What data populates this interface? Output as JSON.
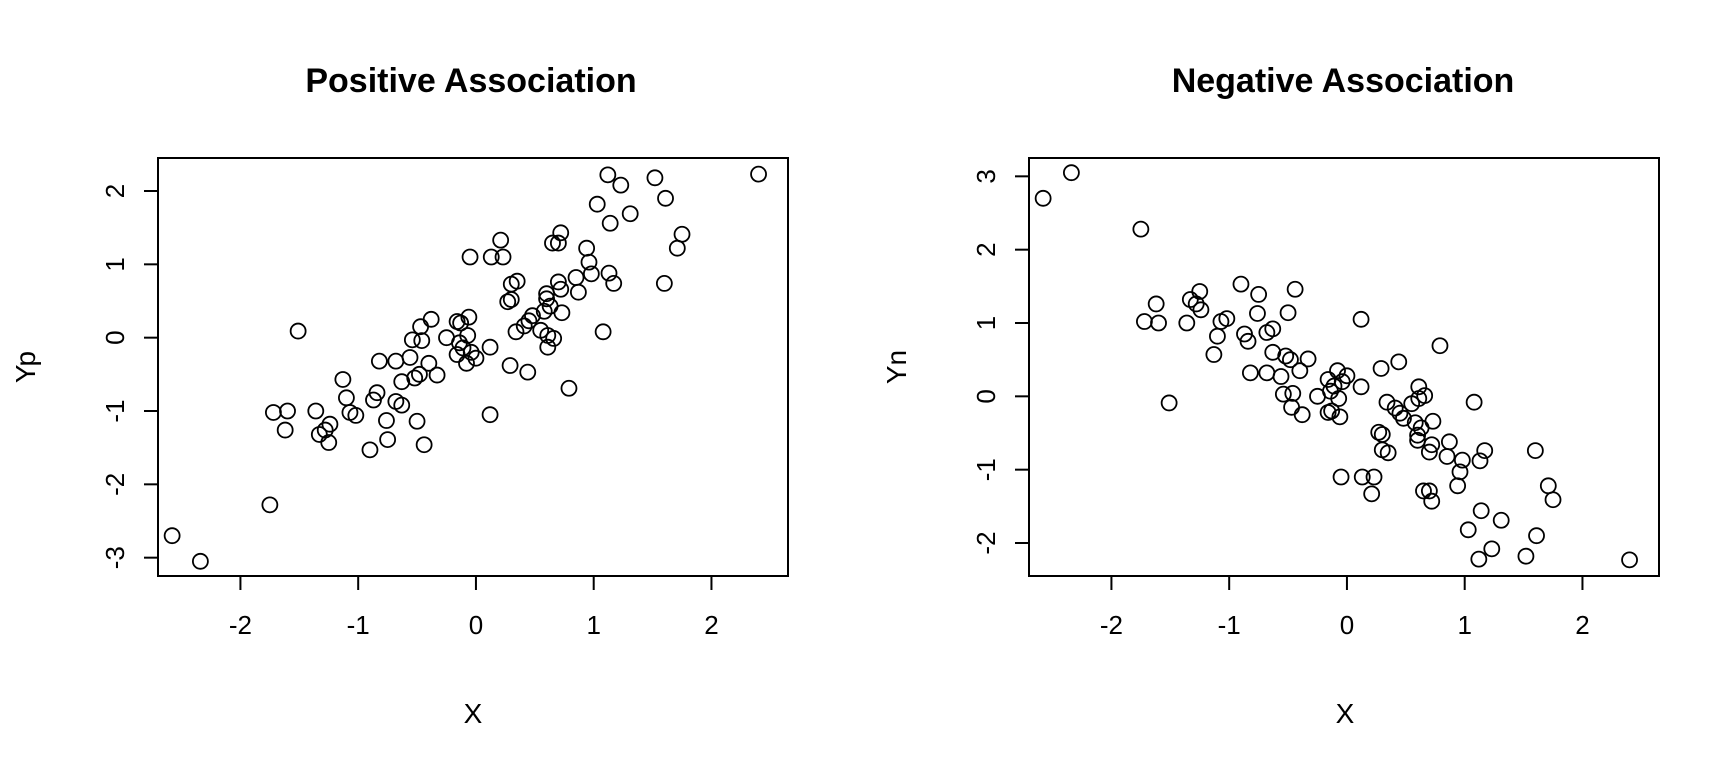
{
  "chart_data": [
    {
      "type": "scatter",
      "title": "Positive Association",
      "xlabel": "X",
      "ylabel": "Yp",
      "xlim": [
        -2.7,
        2.65
      ],
      "ylim": [
        -3.25,
        2.45
      ],
      "xticks": [
        -2,
        -1,
        0,
        1,
        2
      ],
      "yticks": [
        -3,
        -2,
        -1,
        0,
        1,
        2
      ],
      "xtick_labels": [
        "-2",
        "-1",
        "0",
        "1",
        "2"
      ],
      "ytick_labels": [
        "-3",
        "-2",
        "-1",
        "0",
        "1",
        "2"
      ],
      "grid": false,
      "marker": "open-circle",
      "color": "#000000",
      "points": [
        {
          "x": -2.58,
          "y": -2.7
        },
        {
          "x": -2.34,
          "y": -3.05
        },
        {
          "x": -1.75,
          "y": -2.28
        },
        {
          "x": -1.72,
          "y": -1.02
        },
        {
          "x": -1.62,
          "y": -1.26
        },
        {
          "x": -1.6,
          "y": -1.0
        },
        {
          "x": -1.51,
          "y": 0.09
        },
        {
          "x": -1.36,
          "y": -1.0
        },
        {
          "x": -1.33,
          "y": -1.32
        },
        {
          "x": -1.28,
          "y": -1.26
        },
        {
          "x": -1.25,
          "y": -1.43
        },
        {
          "x": -1.24,
          "y": -1.18
        },
        {
          "x": -1.13,
          "y": -0.57
        },
        {
          "x": -1.1,
          "y": -0.82
        },
        {
          "x": -1.07,
          "y": -1.02
        },
        {
          "x": -1.02,
          "y": -1.06
        },
        {
          "x": -0.9,
          "y": -1.53
        },
        {
          "x": -0.87,
          "y": -0.85
        },
        {
          "x": -0.84,
          "y": -0.75
        },
        {
          "x": -0.82,
          "y": -0.32
        },
        {
          "x": -0.76,
          "y": -1.13
        },
        {
          "x": -0.75,
          "y": -1.39
        },
        {
          "x": -0.68,
          "y": -0.87
        },
        {
          "x": -0.68,
          "y": -0.32
        },
        {
          "x": -0.63,
          "y": -0.92
        },
        {
          "x": -0.63,
          "y": -0.6
        },
        {
          "x": -0.56,
          "y": -0.27
        },
        {
          "x": -0.54,
          "y": -0.03
        },
        {
          "x": -0.52,
          "y": -0.55
        },
        {
          "x": -0.5,
          "y": -1.14
        },
        {
          "x": -0.48,
          "y": -0.5
        },
        {
          "x": -0.47,
          "y": 0.15
        },
        {
          "x": -0.46,
          "y": -0.04
        },
        {
          "x": -0.44,
          "y": -1.46
        },
        {
          "x": -0.4,
          "y": -0.35
        },
        {
          "x": -0.38,
          "y": 0.25
        },
        {
          "x": -0.33,
          "y": -0.51
        },
        {
          "x": -0.25,
          "y": 0.0
        },
        {
          "x": -0.16,
          "y": 0.22
        },
        {
          "x": -0.16,
          "y": -0.23
        },
        {
          "x": -0.14,
          "y": -0.07
        },
        {
          "x": -0.13,
          "y": 0.2
        },
        {
          "x": -0.11,
          "y": -0.14
        },
        {
          "x": -0.08,
          "y": -0.35
        },
        {
          "x": -0.07,
          "y": 0.03
        },
        {
          "x": -0.06,
          "y": 0.28
        },
        {
          "x": -0.05,
          "y": 1.1
        },
        {
          "x": -0.04,
          "y": -0.2
        },
        {
          "x": 0.0,
          "y": -0.28
        },
        {
          "x": 0.12,
          "y": -0.13
        },
        {
          "x": 0.12,
          "y": -1.05
        },
        {
          "x": 0.13,
          "y": 1.1
        },
        {
          "x": 0.21,
          "y": 1.33
        },
        {
          "x": 0.23,
          "y": 1.1
        },
        {
          "x": 0.27,
          "y": 0.49
        },
        {
          "x": 0.29,
          "y": -0.38
        },
        {
          "x": 0.3,
          "y": 0.52
        },
        {
          "x": 0.3,
          "y": 0.73
        },
        {
          "x": 0.34,
          "y": 0.08
        },
        {
          "x": 0.35,
          "y": 0.77
        },
        {
          "x": 0.41,
          "y": 0.16
        },
        {
          "x": 0.44,
          "y": -0.47
        },
        {
          "x": 0.45,
          "y": 0.23
        },
        {
          "x": 0.48,
          "y": 0.3
        },
        {
          "x": 0.55,
          "y": 0.1
        },
        {
          "x": 0.58,
          "y": 0.36
        },
        {
          "x": 0.6,
          "y": 0.6
        },
        {
          "x": 0.6,
          "y": 0.53
        },
        {
          "x": 0.61,
          "y": 0.03
        },
        {
          "x": 0.61,
          "y": -0.13
        },
        {
          "x": 0.63,
          "y": 0.43
        },
        {
          "x": 0.65,
          "y": 1.29
        },
        {
          "x": 0.66,
          "y": -0.01
        },
        {
          "x": 0.7,
          "y": 1.29
        },
        {
          "x": 0.7,
          "y": 0.76
        },
        {
          "x": 0.72,
          "y": 1.43
        },
        {
          "x": 0.72,
          "y": 0.66
        },
        {
          "x": 0.73,
          "y": 0.34
        },
        {
          "x": 0.79,
          "y": -0.69
        },
        {
          "x": 0.85,
          "y": 0.82
        },
        {
          "x": 0.87,
          "y": 0.62
        },
        {
          "x": 0.94,
          "y": 1.22
        },
        {
          "x": 0.96,
          "y": 1.03
        },
        {
          "x": 0.98,
          "y": 0.87
        },
        {
          "x": 1.03,
          "y": 1.82
        },
        {
          "x": 1.08,
          "y": 0.08
        },
        {
          "x": 1.12,
          "y": 2.22
        },
        {
          "x": 1.13,
          "y": 0.88
        },
        {
          "x": 1.14,
          "y": 1.56
        },
        {
          "x": 1.17,
          "y": 0.74
        },
        {
          "x": 1.23,
          "y": 2.08
        },
        {
          "x": 1.31,
          "y": 1.69
        },
        {
          "x": 1.52,
          "y": 2.18
        },
        {
          "x": 1.6,
          "y": 0.74
        },
        {
          "x": 1.61,
          "y": 1.9
        },
        {
          "x": 1.71,
          "y": 1.22
        },
        {
          "x": 1.75,
          "y": 1.41
        },
        {
          "x": 2.4,
          "y": 2.23
        }
      ]
    },
    {
      "type": "scatter",
      "title": "Negative Association",
      "xlabel": "X",
      "ylabel": "Yn",
      "xlim": [
        -2.7,
        2.65
      ],
      "ylim": [
        -2.45,
        3.25
      ],
      "xticks": [
        -2,
        -1,
        0,
        1,
        2
      ],
      "yticks": [
        -2,
        -1,
        0,
        1,
        2,
        3
      ],
      "xtick_labels": [
        "-2",
        "-1",
        "0",
        "1",
        "2"
      ],
      "ytick_labels": [
        "-2",
        "-1",
        "0",
        "1",
        "2",
        "3"
      ],
      "grid": false,
      "marker": "open-circle",
      "color": "#000000",
      "points": [
        {
          "x": -2.58,
          "y": 2.7
        },
        {
          "x": -2.34,
          "y": 3.05
        },
        {
          "x": -1.75,
          "y": 2.28
        },
        {
          "x": -1.72,
          "y": 1.02
        },
        {
          "x": -1.62,
          "y": 1.26
        },
        {
          "x": -1.6,
          "y": 1.0
        },
        {
          "x": -1.51,
          "y": -0.09
        },
        {
          "x": -1.36,
          "y": 1.0
        },
        {
          "x": -1.33,
          "y": 1.32
        },
        {
          "x": -1.28,
          "y": 1.26
        },
        {
          "x": -1.25,
          "y": 1.43
        },
        {
          "x": -1.24,
          "y": 1.18
        },
        {
          "x": -1.13,
          "y": 0.57
        },
        {
          "x": -1.1,
          "y": 0.82
        },
        {
          "x": -1.07,
          "y": 1.02
        },
        {
          "x": -1.02,
          "y": 1.06
        },
        {
          "x": -0.9,
          "y": 1.53
        },
        {
          "x": -0.87,
          "y": 0.85
        },
        {
          "x": -0.84,
          "y": 0.75
        },
        {
          "x": -0.82,
          "y": 0.32
        },
        {
          "x": -0.76,
          "y": 1.13
        },
        {
          "x": -0.75,
          "y": 1.39
        },
        {
          "x": -0.68,
          "y": 0.87
        },
        {
          "x": -0.68,
          "y": 0.32
        },
        {
          "x": -0.63,
          "y": 0.92
        },
        {
          "x": -0.63,
          "y": 0.6
        },
        {
          "x": -0.56,
          "y": 0.27
        },
        {
          "x": -0.54,
          "y": 0.03
        },
        {
          "x": -0.52,
          "y": 0.55
        },
        {
          "x": -0.5,
          "y": 1.14
        },
        {
          "x": -0.48,
          "y": 0.5
        },
        {
          "x": -0.47,
          "y": -0.15
        },
        {
          "x": -0.46,
          "y": 0.04
        },
        {
          "x": -0.44,
          "y": 1.46
        },
        {
          "x": -0.4,
          "y": 0.35
        },
        {
          "x": -0.38,
          "y": -0.25
        },
        {
          "x": -0.33,
          "y": 0.51
        },
        {
          "x": -0.25,
          "y": 0.0
        },
        {
          "x": -0.16,
          "y": -0.22
        },
        {
          "x": -0.16,
          "y": 0.23
        },
        {
          "x": -0.14,
          "y": 0.07
        },
        {
          "x": -0.13,
          "y": -0.2
        },
        {
          "x": -0.11,
          "y": 0.14
        },
        {
          "x": -0.08,
          "y": 0.35
        },
        {
          "x": -0.07,
          "y": -0.03
        },
        {
          "x": -0.06,
          "y": -0.28
        },
        {
          "x": -0.05,
          "y": -1.1
        },
        {
          "x": -0.04,
          "y": 0.2
        },
        {
          "x": 0.0,
          "y": 0.28
        },
        {
          "x": 0.12,
          "y": 0.13
        },
        {
          "x": 0.12,
          "y": 1.05
        },
        {
          "x": 0.13,
          "y": -1.1
        },
        {
          "x": 0.21,
          "y": -1.33
        },
        {
          "x": 0.23,
          "y": -1.1
        },
        {
          "x": 0.27,
          "y": -0.49
        },
        {
          "x": 0.29,
          "y": 0.38
        },
        {
          "x": 0.3,
          "y": -0.52
        },
        {
          "x": 0.3,
          "y": -0.73
        },
        {
          "x": 0.34,
          "y": -0.08
        },
        {
          "x": 0.35,
          "y": -0.77
        },
        {
          "x": 0.41,
          "y": -0.16
        },
        {
          "x": 0.44,
          "y": 0.47
        },
        {
          "x": 0.45,
          "y": -0.23
        },
        {
          "x": 0.48,
          "y": -0.3
        },
        {
          "x": 0.55,
          "y": -0.1
        },
        {
          "x": 0.58,
          "y": -0.36
        },
        {
          "x": 0.6,
          "y": -0.6
        },
        {
          "x": 0.6,
          "y": -0.53
        },
        {
          "x": 0.61,
          "y": -0.03
        },
        {
          "x": 0.61,
          "y": 0.13
        },
        {
          "x": 0.63,
          "y": -0.43
        },
        {
          "x": 0.65,
          "y": -1.29
        },
        {
          "x": 0.66,
          "y": 0.01
        },
        {
          "x": 0.7,
          "y": -1.29
        },
        {
          "x": 0.7,
          "y": -0.76
        },
        {
          "x": 0.72,
          "y": -1.43
        },
        {
          "x": 0.72,
          "y": -0.66
        },
        {
          "x": 0.73,
          "y": -0.34
        },
        {
          "x": 0.79,
          "y": 0.69
        },
        {
          "x": 0.85,
          "y": -0.82
        },
        {
          "x": 0.87,
          "y": -0.62
        },
        {
          "x": 0.94,
          "y": -1.22
        },
        {
          "x": 0.96,
          "y": -1.03
        },
        {
          "x": 0.98,
          "y": -0.87
        },
        {
          "x": 1.03,
          "y": -1.82
        },
        {
          "x": 1.08,
          "y": -0.08
        },
        {
          "x": 1.12,
          "y": -2.22
        },
        {
          "x": 1.13,
          "y": -0.88
        },
        {
          "x": 1.14,
          "y": -1.56
        },
        {
          "x": 1.17,
          "y": -0.74
        },
        {
          "x": 1.23,
          "y": -2.08
        },
        {
          "x": 1.31,
          "y": -1.69
        },
        {
          "x": 1.52,
          "y": -2.18
        },
        {
          "x": 1.6,
          "y": -0.74
        },
        {
          "x": 1.61,
          "y": -1.9
        },
        {
          "x": 1.71,
          "y": -1.22
        },
        {
          "x": 1.75,
          "y": -1.41
        },
        {
          "x": 2.4,
          "y": -2.23
        }
      ]
    }
  ]
}
